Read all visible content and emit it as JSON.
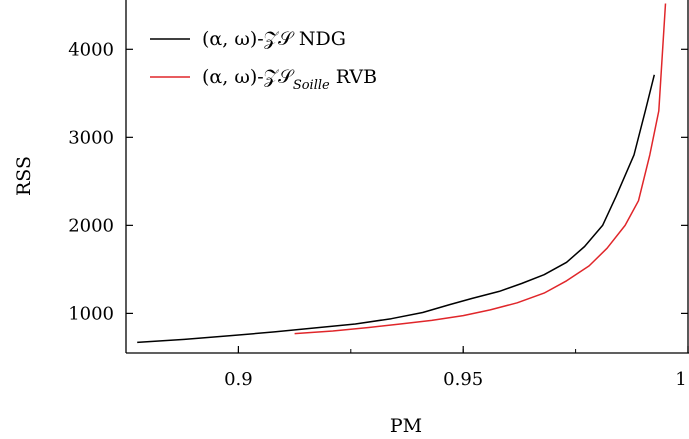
{
  "chart_data": {
    "type": "line",
    "xlabel": "PM",
    "ylabel": "RSS",
    "xlim": [
      0.875,
      1.0
    ],
    "ylim": [
      550,
      4560
    ],
    "xticks": [
      {
        "value": 0.9,
        "label": "0.9"
      },
      {
        "value": 0.95,
        "label": "0.95"
      },
      {
        "value": 1.0,
        "label": "1"
      }
    ],
    "yticks": [
      {
        "value": 1000,
        "label": "1000"
      },
      {
        "value": 2000,
        "label": "2000"
      },
      {
        "value": 3000,
        "label": "3000"
      },
      {
        "value": 4000,
        "label": "4000"
      }
    ],
    "legend_position": "top-left",
    "grid": false,
    "series": [
      {
        "name": "(α,ω)-𝒵𝒮 NDG",
        "legend_main": "(α, ω)-𝒵𝒮 NDG",
        "color": "#000000",
        "x": [
          0.8775,
          0.888,
          0.898,
          0.908,
          0.918,
          0.926,
          0.934,
          0.941,
          0.947,
          0.952,
          0.958,
          0.963,
          0.968,
          0.973,
          0.977,
          0.981,
          0.984,
          0.988,
          0.9905,
          0.9925
        ],
        "y": [
          670,
          705,
          745,
          790,
          840,
          880,
          940,
          1010,
          1100,
          1170,
          1250,
          1340,
          1440,
          1580,
          1760,
          2000,
          2330,
          2800,
          3300,
          3710
        ]
      },
      {
        "name": "(α,ω)-𝒵𝒮 Soille RVB",
        "legend_main": "(α, ω)-𝒵𝒮",
        "legend_sub": "Soille",
        "legend_suffix": " RVB",
        "color": "#e0262a",
        "x": [
          0.9125,
          0.921,
          0.929,
          0.936,
          0.943,
          0.95,
          0.956,
          0.962,
          0.968,
          0.973,
          0.978,
          0.982,
          0.986,
          0.989,
          0.9915,
          0.9935,
          0.995
        ],
        "y": [
          770,
          800,
          840,
          880,
          920,
          975,
          1040,
          1120,
          1230,
          1370,
          1540,
          1740,
          2000,
          2280,
          2800,
          3300,
          4520
        ]
      }
    ]
  }
}
